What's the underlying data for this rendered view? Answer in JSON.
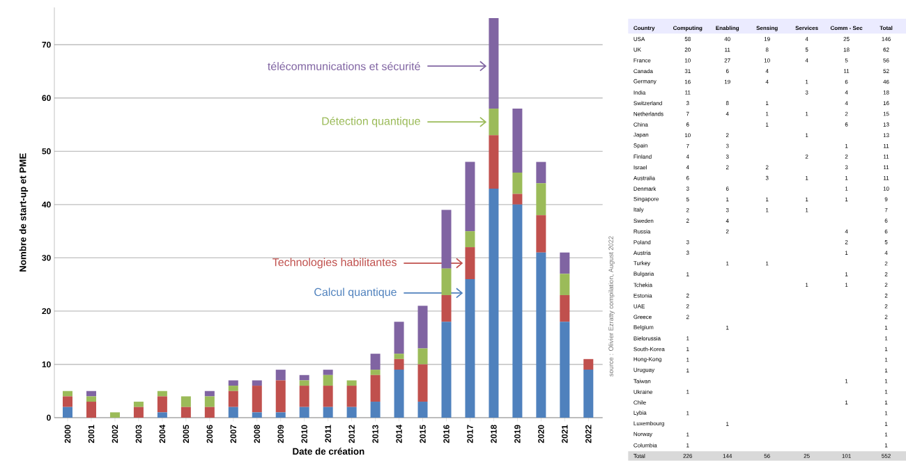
{
  "chart_data": [
    {
      "type": "bar",
      "stacked": true,
      "xlabel": "Date de création",
      "ylabel": "Nombre de start-up et PME",
      "categories": [
        "2000",
        "2001",
        "2002",
        "2003",
        "2004",
        "2005",
        "2006",
        "2007",
        "2008",
        "2009",
        "2010",
        "2011",
        "2012",
        "2013",
        "2014",
        "2015",
        "2016",
        "2017",
        "2018",
        "2019",
        "2020",
        "2021",
        "2022"
      ],
      "series": [
        {
          "name": "Calcul quantique",
          "color": "#4f81bd",
          "values": [
            2,
            0,
            0,
            0,
            1,
            0,
            0,
            2,
            1,
            1,
            2,
            2,
            2,
            3,
            9,
            3,
            18,
            26,
            43,
            40,
            31,
            18,
            9
          ]
        },
        {
          "name": "Technologies habilitantes",
          "color": "#c0504d",
          "values": [
            2,
            3,
            0,
            2,
            3,
            2,
            2,
            3,
            5,
            6,
            4,
            4,
            4,
            5,
            2,
            7,
            5,
            6,
            10,
            2,
            7,
            5,
            2
          ]
        },
        {
          "name": "Détection quantique",
          "color": "#9bbb59",
          "values": [
            1,
            1,
            1,
            1,
            1,
            2,
            2,
            1,
            0,
            0,
            1,
            2,
            1,
            1,
            1,
            3,
            5,
            3,
            5,
            4,
            6,
            4,
            0
          ]
        },
        {
          "name": "télécommunications et sécurité",
          "color": "#8064a2",
          "values": [
            0,
            1,
            0,
            0,
            0,
            0,
            1,
            1,
            1,
            2,
            1,
            1,
            0,
            3,
            6,
            8,
            11,
            13,
            17,
            12,
            4,
            4,
            0
          ]
        }
      ],
      "ylim": [
        0,
        77
      ],
      "yticks": [
        0,
        10,
        20,
        30,
        40,
        50,
        60,
        70
      ],
      "grid": "y"
    },
    {
      "type": "heatmap",
      "ylabel": "Country",
      "data_labels": true,
      "categories": [
        "Computing",
        "Enabling",
        "Sensing",
        "Services",
        "Comm - Sec",
        "Total"
      ],
      "y_categories": [
        "USA",
        "UK",
        "France",
        "Canada",
        "Germany",
        "India",
        "Switzerland",
        "Netherlands",
        "China",
        "Japan",
        "Spain",
        "Finland",
        "Israel",
        "Australia",
        "Denmark",
        "Singapore",
        "Italy",
        "Sweden",
        "Russia",
        "Poland",
        "Austria",
        "Turkey",
        "Bulgaria",
        "Tchekia",
        "Estonia",
        "UAE",
        "Greece",
        "Belgium",
        "Bielorussia",
        "South-Korea",
        "Hong-Kong",
        "Uruguay",
        "Taiwan",
        "Ukraine",
        "Chile",
        "Lybia",
        "Luxembourg",
        "Norway",
        "Columbia",
        "Total"
      ],
      "cells": [
        [
          58,
          40,
          19,
          4,
          25,
          146
        ],
        [
          20,
          11,
          8,
          5,
          18,
          62
        ],
        [
          10,
          27,
          10,
          4,
          5,
          56
        ],
        [
          31,
          6,
          4,
          null,
          11,
          52
        ],
        [
          16,
          19,
          4,
          1,
          6,
          46
        ],
        [
          11,
          null,
          null,
          3,
          4,
          18
        ],
        [
          3,
          8,
          1,
          null,
          4,
          16
        ],
        [
          7,
          4,
          1,
          1,
          2,
          15
        ],
        [
          6,
          null,
          1,
          null,
          6,
          13
        ],
        [
          10,
          2,
          null,
          1,
          null,
          13
        ],
        [
          7,
          3,
          null,
          null,
          1,
          11
        ],
        [
          4,
          3,
          null,
          2,
          2,
          11
        ],
        [
          4,
          2,
          2,
          null,
          3,
          11
        ],
        [
          6,
          null,
          3,
          1,
          1,
          11
        ],
        [
          3,
          6,
          null,
          null,
          1,
          10
        ],
        [
          5,
          1,
          1,
          1,
          1,
          9
        ],
        [
          2,
          3,
          1,
          1,
          null,
          7
        ],
        [
          2,
          4,
          null,
          null,
          null,
          6
        ],
        [
          null,
          2,
          null,
          null,
          4,
          6
        ],
        [
          3,
          null,
          null,
          null,
          2,
          5
        ],
        [
          3,
          null,
          null,
          null,
          1,
          4
        ],
        [
          null,
          1,
          1,
          null,
          null,
          2
        ],
        [
          1,
          null,
          null,
          null,
          1,
          2
        ],
        [
          null,
          null,
          null,
          1,
          1,
          2
        ],
        [
          2,
          null,
          null,
          null,
          null,
          2
        ],
        [
          2,
          null,
          null,
          null,
          null,
          2
        ],
        [
          2,
          null,
          null,
          null,
          null,
          2
        ],
        [
          null,
          1,
          null,
          null,
          null,
          1
        ],
        [
          1,
          null,
          null,
          null,
          null,
          1
        ],
        [
          1,
          null,
          null,
          null,
          null,
          1
        ],
        [
          1,
          null,
          null,
          null,
          null,
          1
        ],
        [
          1,
          null,
          null,
          null,
          null,
          1
        ],
        [
          null,
          null,
          null,
          null,
          1,
          1
        ],
        [
          1,
          null,
          null,
          null,
          null,
          1
        ],
        [
          null,
          null,
          null,
          null,
          1,
          1
        ],
        [
          1,
          null,
          null,
          null,
          null,
          1
        ],
        [
          null,
          1,
          null,
          null,
          null,
          1
        ],
        [
          1,
          null,
          null,
          null,
          null,
          1
        ],
        [
          1,
          null,
          null,
          null,
          null,
          1
        ],
        [
          226,
          144,
          56,
          25,
          101,
          552
        ]
      ],
      "annotations": [
        "source : Olivier Ezratty compilation, August 2022"
      ]
    }
  ]
}
